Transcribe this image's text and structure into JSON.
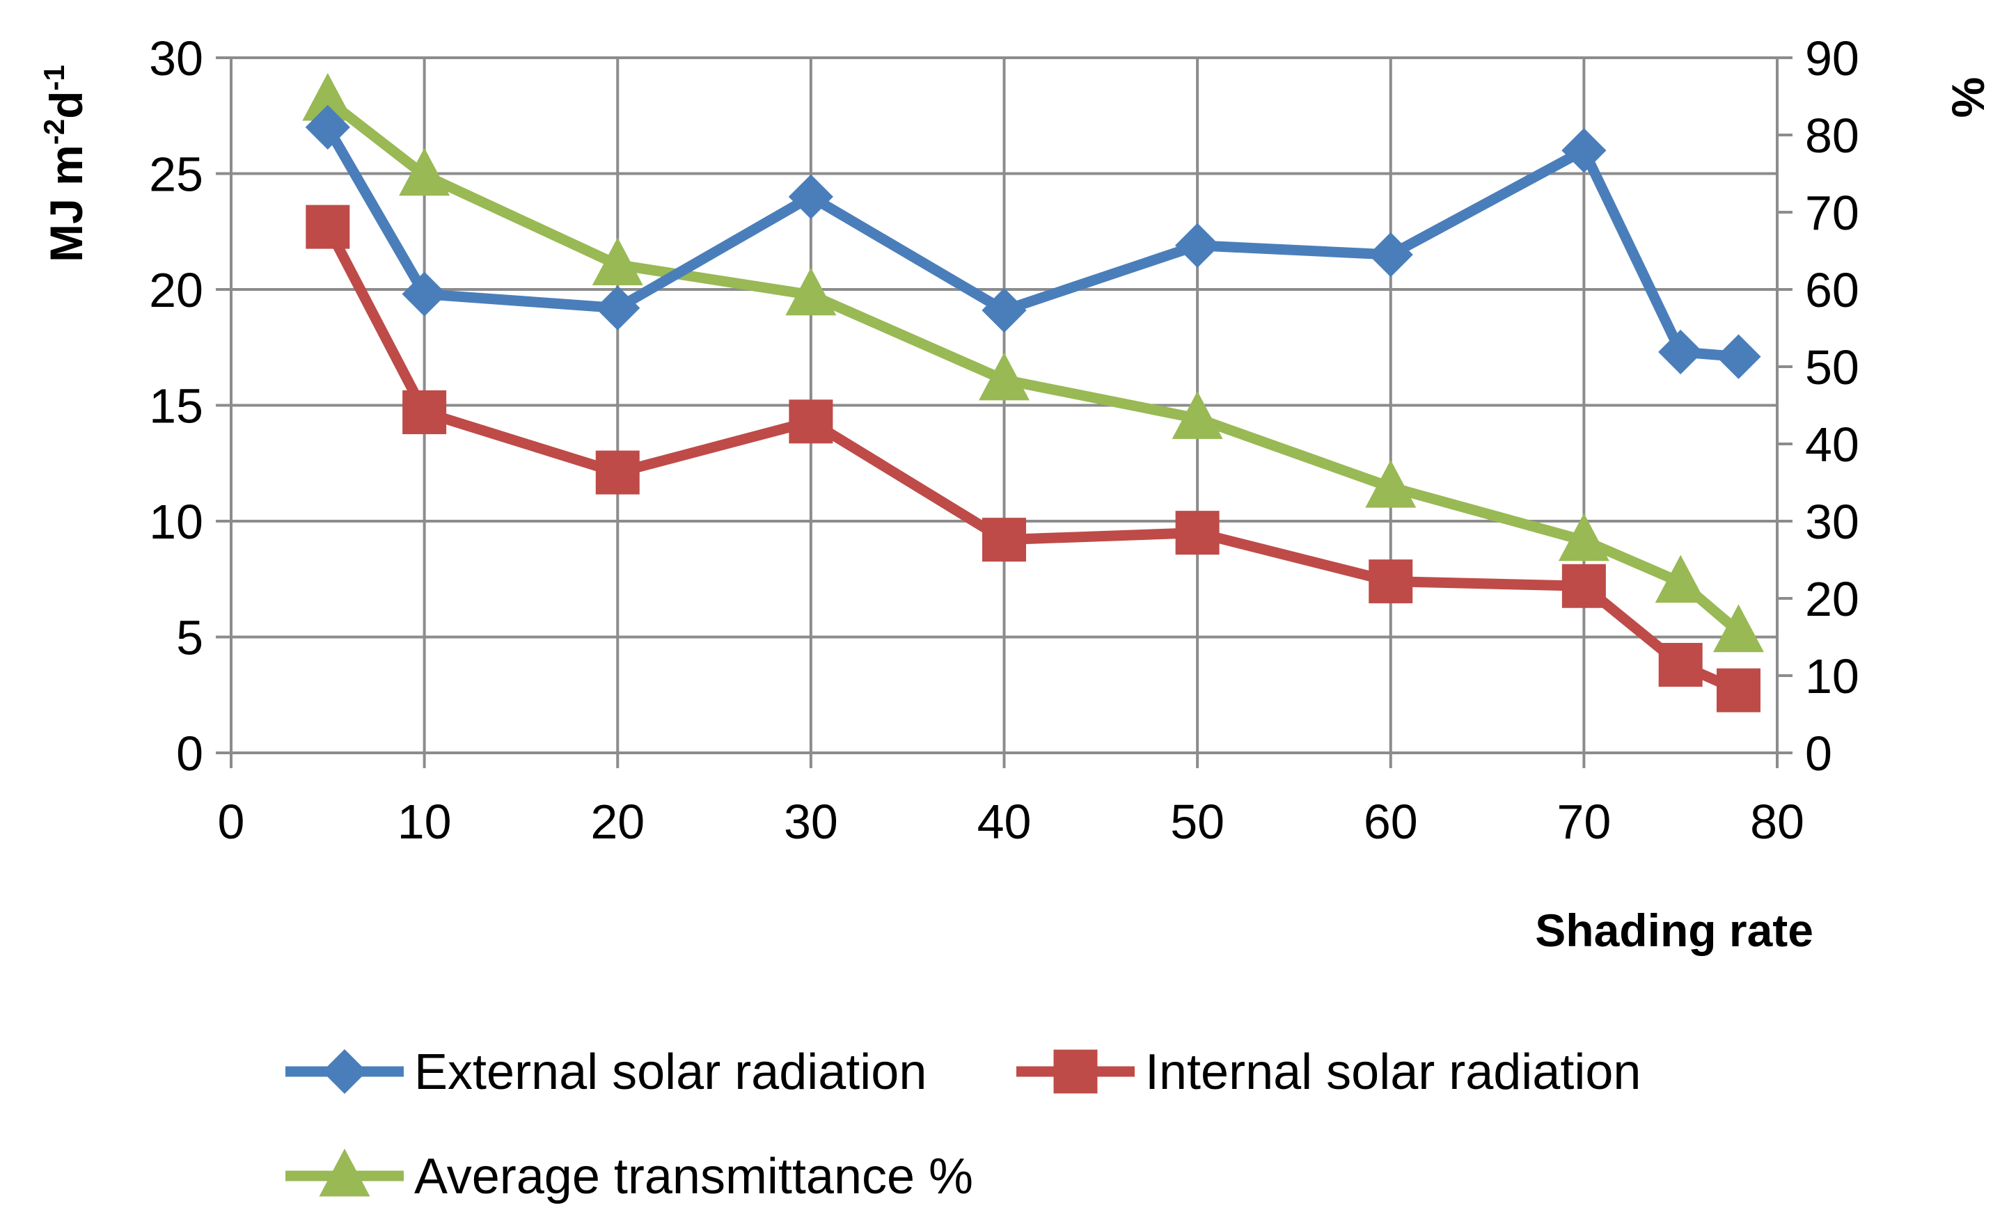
{
  "chart_data": {
    "type": "line",
    "title": "",
    "xlabel": "Shading rate",
    "ylabel": "MJ m",
    "ylabel_sup1": "-2",
    "ylabel_mid": "d",
    "ylabel_sup2": "-1",
    "y2label": "%",
    "xlim": [
      0,
      80
    ],
    "ylim": [
      0,
      30
    ],
    "y2lim": [
      0,
      90
    ],
    "x_ticks": [
      "0",
      "10",
      "20",
      "30",
      "40",
      "50",
      "60",
      "70",
      "80"
    ],
    "y_ticks": [
      "0",
      "5",
      "10",
      "15",
      "20",
      "25",
      "30"
    ],
    "y2_ticks": [
      "0",
      "10",
      "20",
      "30",
      "40",
      "50",
      "60",
      "70",
      "80",
      "90"
    ],
    "grid": true,
    "legend_position": "bottom",
    "series": [
      {
        "name": "External solar radiation",
        "axis": "left",
        "marker": "diamond",
        "color": "#4A7EBB",
        "x": [
          5,
          10,
          20,
          30,
          40,
          50,
          60,
          70,
          75,
          78
        ],
        "values": [
          27.0,
          19.8,
          19.2,
          24.0,
          19.1,
          21.9,
          21.5,
          26.0,
          17.3,
          17.1
        ]
      },
      {
        "name": "Internal solar radiation",
        "axis": "left",
        "marker": "square",
        "color": "#BE4B48",
        "x": [
          5,
          10,
          20,
          30,
          40,
          50,
          60,
          70,
          75,
          78
        ],
        "values": [
          22.7,
          14.7,
          12.1,
          14.3,
          9.2,
          9.5,
          7.4,
          7.2,
          3.8,
          2.7
        ]
      },
      {
        "name": "Average transmittance %",
        "axis": "right",
        "marker": "triangle",
        "color": "#98B954",
        "x": [
          5,
          10,
          20,
          30,
          40,
          50,
          60,
          70,
          75,
          78
        ],
        "values": [
          84.5,
          74.8,
          63.2,
          59.3,
          48.3,
          43.3,
          34.4,
          27.5,
          22.1,
          15.7
        ]
      }
    ]
  }
}
